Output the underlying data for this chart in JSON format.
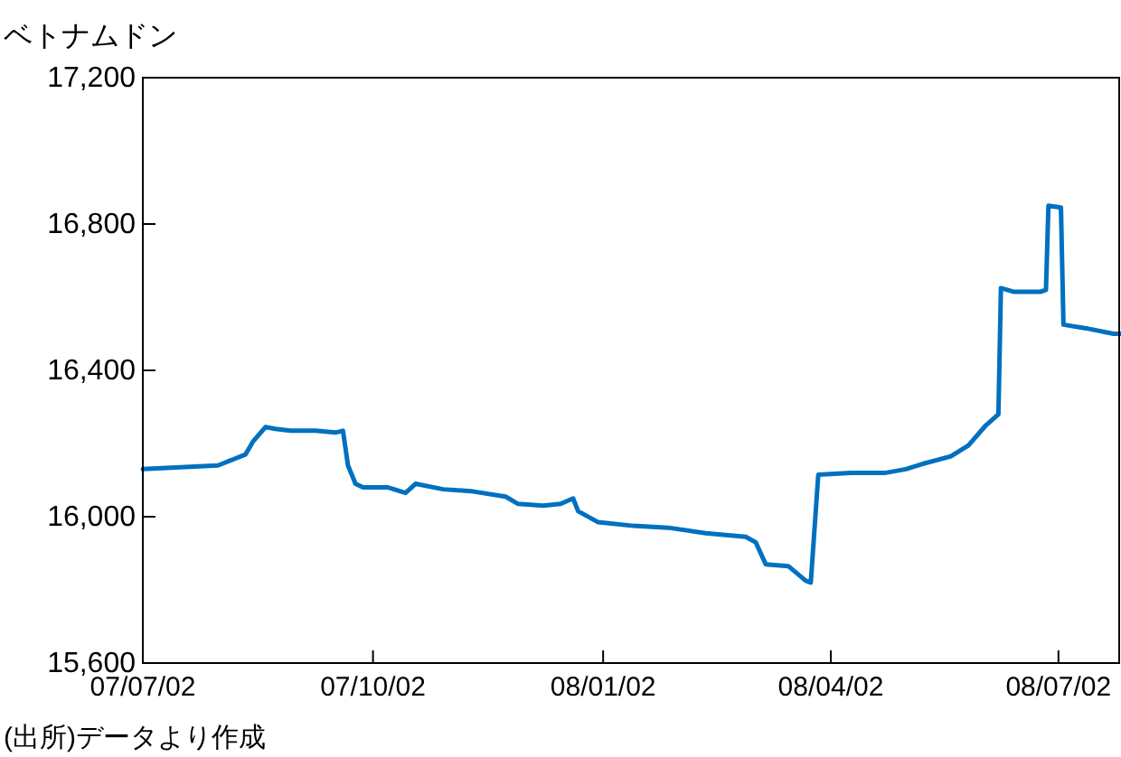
{
  "chart_data": {
    "type": "line",
    "ylabel": "ベトナムドン",
    "annotations": [
      "(出所)データより作成"
    ],
    "series": [
      {
        "color": "#0070c0",
        "x": [
          "2007-07-02",
          "2007-07-17",
          "2007-08-01",
          "2007-08-12",
          "2007-08-15",
          "2007-08-20",
          "2007-08-24",
          "2007-08-30",
          "2007-09-09",
          "2007-09-17",
          "2007-09-20",
          "2007-09-22",
          "2007-09-25",
          "2007-09-28",
          "2007-10-08",
          "2007-10-15",
          "2007-10-19",
          "2007-10-30",
          "2007-11-10",
          "2007-11-24",
          "2007-11-29",
          "2007-12-09",
          "2007-12-16",
          "2007-12-21",
          "2007-12-23",
          "2007-12-31",
          "2008-01-14",
          "2008-01-28",
          "2008-02-12",
          "2008-02-28",
          "2008-03-03",
          "2008-03-07",
          "2008-03-16",
          "2008-03-23",
          "2008-03-25",
          "2008-03-28",
          "2008-04-10",
          "2008-04-24",
          "2008-05-02",
          "2008-05-09",
          "2008-05-20",
          "2008-05-27",
          "2008-06-03",
          "2008-06-08",
          "2008-06-09",
          "2008-06-14",
          "2008-06-25",
          "2008-06-27",
          "2008-06-28",
          "2008-07-03",
          "2008-07-04",
          "2008-07-13",
          "2008-07-24",
          "2008-07-27"
        ],
        "values": [
          16130,
          16135,
          16140,
          16170,
          16205,
          16245,
          16240,
          16235,
          16235,
          16230,
          16235,
          16140,
          16090,
          16080,
          16080,
          16065,
          16090,
          16075,
          16070,
          16055,
          16035,
          16030,
          16035,
          16050,
          16015,
          15985,
          15975,
          15970,
          15955,
          15945,
          15930,
          15870,
          15865,
          15825,
          15820,
          16115,
          16120,
          16120,
          16130,
          16145,
          16165,
          16195,
          16250,
          16280,
          16625,
          16615,
          16615,
          16620,
          16850,
          16845,
          16525,
          16515,
          16500,
          16500
        ]
      }
    ],
    "xlim": [
      "2007-07-02",
      "2008-07-27"
    ],
    "xticks": [
      {
        "value": "2007-07-02",
        "label": "07/07/02"
      },
      {
        "value": "2007-10-02",
        "label": "07/10/02"
      },
      {
        "value": "2008-01-02",
        "label": "08/01/02"
      },
      {
        "value": "2008-04-02",
        "label": "08/04/02"
      },
      {
        "value": "2008-07-02",
        "label": "08/07/02"
      }
    ],
    "ylim": [
      15600,
      17200
    ],
    "yticks": [
      {
        "value": 15600,
        "label": "15,600"
      },
      {
        "value": 16000,
        "label": "16,000"
      },
      {
        "value": 16400,
        "label": "16,400"
      },
      {
        "value": 16800,
        "label": "16,800"
      },
      {
        "value": 17200,
        "label": "17,200"
      }
    ],
    "grid": false,
    "line_style": "solid",
    "marker": "none"
  }
}
